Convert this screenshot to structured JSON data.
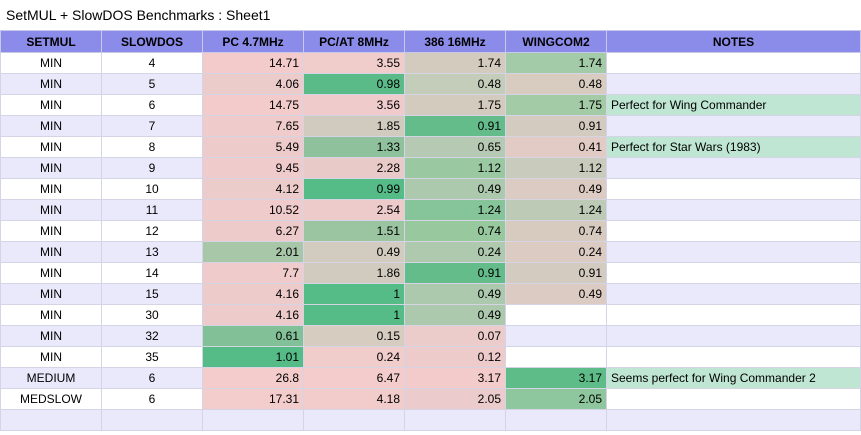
{
  "title": "SetMUL + SlowDOS Benchmarks : Sheet1",
  "colors": {
    "header": "#8b8bea",
    "band": "#e9e9fb",
    "low": "#f4cccc",
    "high": "#57bb8a",
    "note": "#bfe6d3"
  },
  "headers": [
    "SETMUL",
    "SLOWDOS",
    "PC 4.7MHz",
    "PC/AT 8MHz",
    "386 16MHz",
    "WINGCOM2",
    "NOTES"
  ],
  "rows": [
    [
      "MIN",
      "4",
      "14.71",
      "3.55",
      "1.74",
      "1.74",
      ""
    ],
    [
      "MIN",
      "5",
      "4.06",
      "0.98",
      "0.48",
      "0.48",
      ""
    ],
    [
      "MIN",
      "6",
      "14.75",
      "3.56",
      "1.75",
      "1.75",
      "Perfect for Wing Commander"
    ],
    [
      "MIN",
      "7",
      "7.65",
      "1.85",
      "0.91",
      "0.91",
      ""
    ],
    [
      "MIN",
      "8",
      "5.49",
      "1.33",
      "0.65",
      "0.41",
      "Perfect for Star Wars (1983)"
    ],
    [
      "MIN",
      "9",
      "9.45",
      "2.28",
      "1.12",
      "1.12",
      ""
    ],
    [
      "MIN",
      "10",
      "4.12",
      "0.99",
      "0.49",
      "0.49",
      ""
    ],
    [
      "MIN",
      "11",
      "10.52",
      "2.54",
      "1.24",
      "1.24",
      ""
    ],
    [
      "MIN",
      "12",
      "6.27",
      "1.51",
      "0.74",
      "0.74",
      ""
    ],
    [
      "MIN",
      "13",
      "2.01",
      "0.49",
      "0.24",
      "0.24",
      ""
    ],
    [
      "MIN",
      "14",
      "7.7",
      "1.86",
      "0.91",
      "0.91",
      ""
    ],
    [
      "MIN",
      "15",
      "4.16",
      "1",
      "0.49",
      "0.49",
      ""
    ],
    [
      "MIN",
      "30",
      "4.16",
      "1",
      "0.49",
      "",
      ""
    ],
    [
      "MIN",
      "32",
      "0.61",
      "0.15",
      "0.07",
      "",
      ""
    ],
    [
      "MIN",
      "35",
      "1.01",
      "0.24",
      "0.12",
      "",
      ""
    ],
    [
      "MEDIUM",
      "6",
      "26.8",
      "6.47",
      "3.17",
      "3.17",
      "Seems perfect for Wing Commander 2"
    ],
    [
      "MEDSLOW",
      "6",
      "17.31",
      "4.18",
      "2.05",
      "2.05",
      ""
    ],
    [
      "",
      "",
      "",
      "",
      "",
      "",
      ""
    ]
  ],
  "cell_colors": [
    [
      null,
      null,
      "#f3cbcb",
      "#f0cccb",
      "#d4cbbf",
      "#a4cba7",
      null
    ],
    [
      null,
      null,
      "#eccbcb",
      "#5bbb88",
      "#c4ccba",
      "#d8cbc0",
      null
    ],
    [
      null,
      null,
      "#f3cbcb",
      "#efcbcb",
      "#d4cbbf",
      "#a3cba6",
      "#bfe6d3"
    ],
    [
      null,
      null,
      "#f0cbcb",
      "#d1cbbf",
      "#64bc8b",
      "#d3cbbf",
      null
    ],
    [
      null,
      null,
      "#eecbcb",
      "#8fc29c",
      "#b6cab3",
      "#e1cbc4",
      "#bfe6d3"
    ],
    [
      null,
      null,
      "#f0cbcb",
      "#e8cbc8",
      "#99c8a1",
      "#c9cbbc",
      null
    ],
    [
      null,
      null,
      "#ecccca",
      "#55bb87",
      "#acc8ad",
      "#dbcbc2",
      null
    ],
    [
      null,
      null,
      "#f0cbcb",
      "#edcbca",
      "#86c599",
      "#bdcab6",
      null
    ],
    [
      null,
      null,
      "#eecbcb",
      "#9bc5a1",
      "#97c89e",
      "#d7cbc0",
      null
    ],
    [
      null,
      null,
      "#a8c7a9",
      "#d1ccbf",
      "#afc9ae",
      "#dbcbc2",
      null
    ],
    [
      null,
      null,
      "#f0cbcb",
      "#d1cbbf",
      "#64bc8b",
      "#d3cbbf",
      null
    ],
    [
      null,
      null,
      "#edcbcb",
      "#55bb87",
      "#acc8ad",
      "#dbcbc2",
      null
    ],
    [
      null,
      null,
      "#edcbcb",
      "#55bb87",
      "#acc8ad",
      null,
      null
    ],
    [
      null,
      null,
      "#82c097",
      "#d6ccbf",
      "#eccbcb",
      null,
      null
    ],
    [
      null,
      null,
      "#55bb87",
      "#f0cccb",
      "#eecbcb",
      null,
      null
    ],
    [
      null,
      null,
      "#f4cccc",
      "#f4cccc",
      "#f3cbcb",
      "#5dbc88",
      "#bfe6d3"
    ],
    [
      null,
      null,
      "#f3cccc",
      "#f1cccb",
      "#ebcbcb",
      "#8ec79d",
      null
    ],
    [
      null,
      null,
      null,
      null,
      null,
      null,
      null
    ]
  ]
}
